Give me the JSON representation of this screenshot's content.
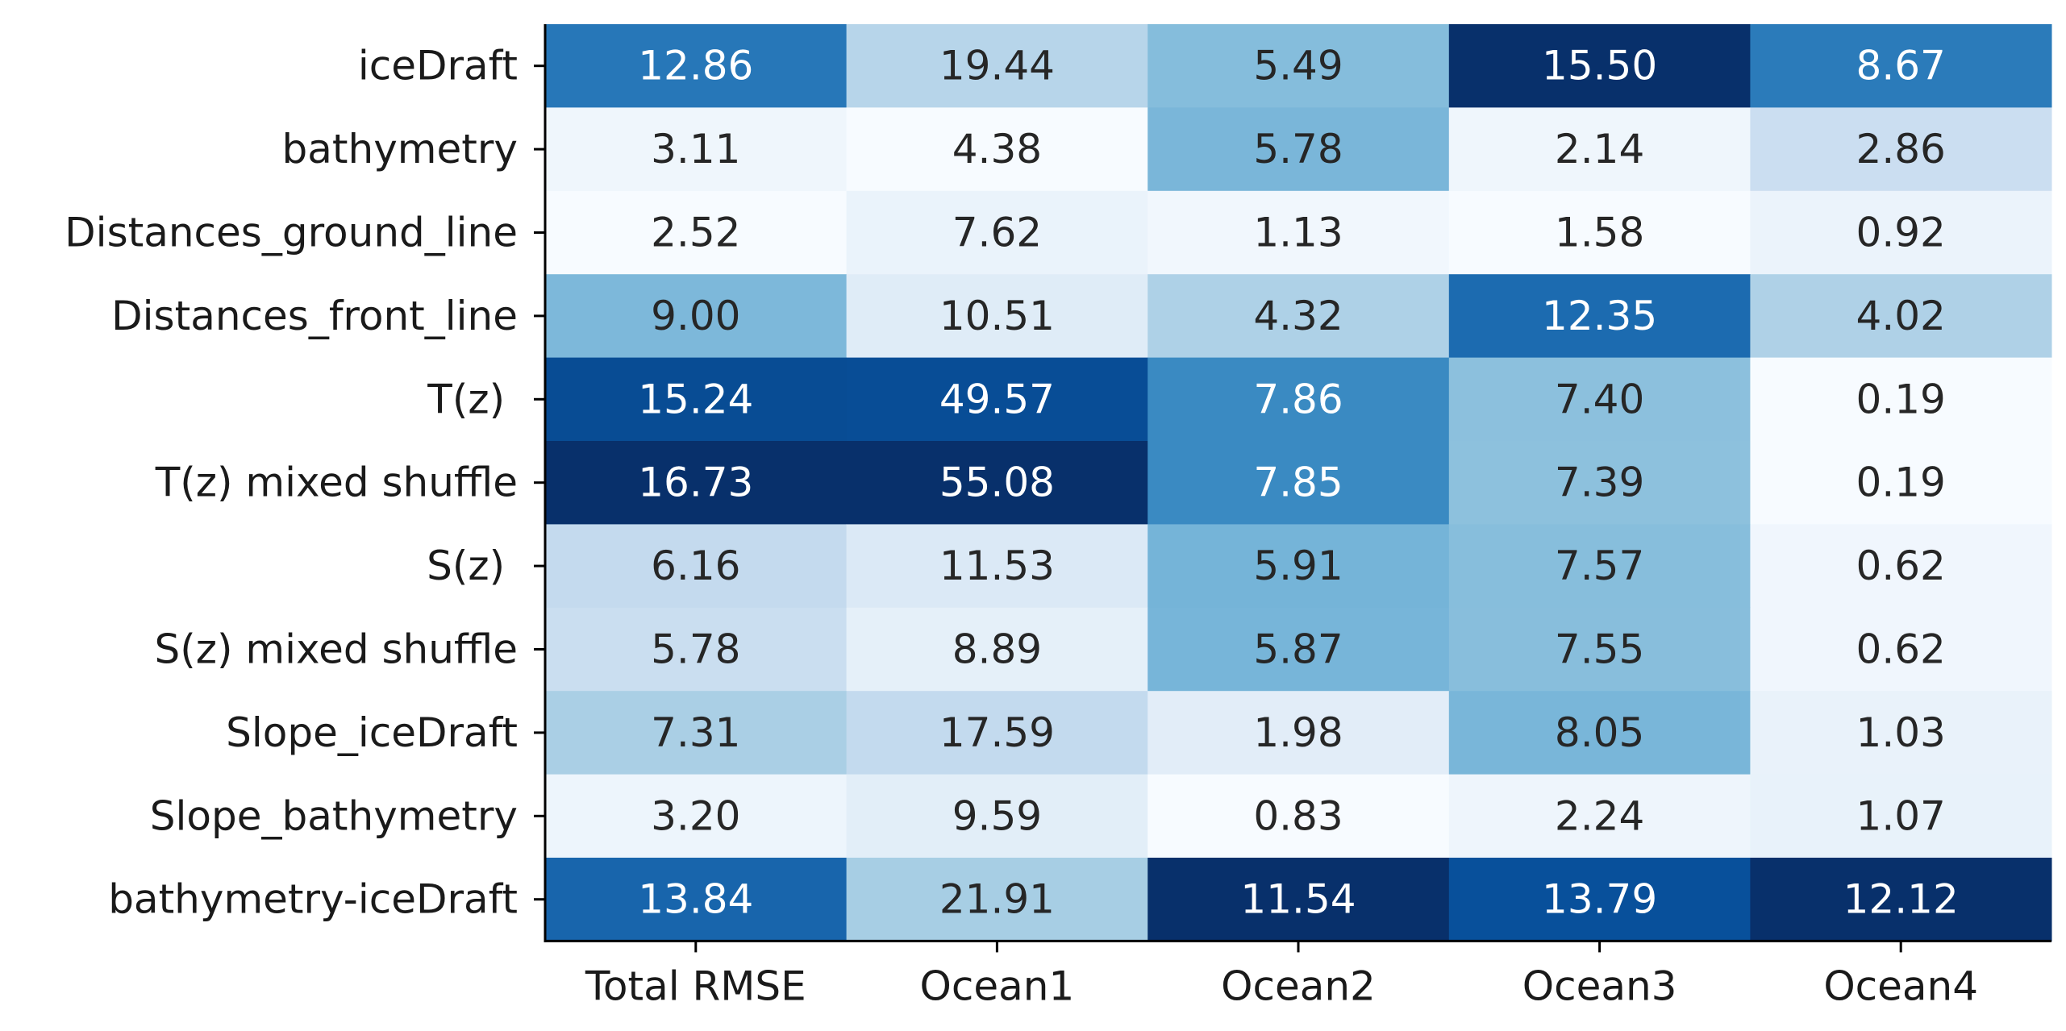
{
  "chart_data": {
    "type": "heatmap",
    "title": "",
    "xlabel": "",
    "ylabel": "",
    "columns": [
      "Total RMSE",
      "Ocean1",
      "Ocean2",
      "Ocean3",
      "Ocean4"
    ],
    "rows": [
      "iceDraft",
      "bathymetry",
      "Distances_ground_line",
      "Distances_front_line",
      "T(z) ",
      "T(z) mixed shuffle",
      "S(z) ",
      "S(z) mixed shuffle",
      "Slope_iceDraft",
      "Slope_bathymetry",
      "bathymetry-iceDraft"
    ],
    "values": [
      [
        12.86,
        19.44,
        5.49,
        15.5,
        8.67
      ],
      [
        3.11,
        4.38,
        5.78,
        2.14,
        2.86
      ],
      [
        2.52,
        7.62,
        1.13,
        1.58,
        0.92
      ],
      [
        9.0,
        10.51,
        4.32,
        12.35,
        4.02
      ],
      [
        15.24,
        49.57,
        7.86,
        7.4,
        0.19
      ],
      [
        16.73,
        55.08,
        7.85,
        7.39,
        0.19
      ],
      [
        6.16,
        11.53,
        5.91,
        7.57,
        0.62
      ],
      [
        5.78,
        8.89,
        5.87,
        7.55,
        0.62
      ],
      [
        7.31,
        17.59,
        1.98,
        8.05,
        1.03
      ],
      [
        3.2,
        9.59,
        0.83,
        2.24,
        1.07
      ],
      [
        13.84,
        21.91,
        11.54,
        13.79,
        12.12
      ]
    ],
    "labels": [
      [
        "12.86",
        "19.44",
        "5.49",
        "15.50",
        "8.67"
      ],
      [
        "3.11",
        "4.38",
        "5.78",
        "2.14",
        "2.86"
      ],
      [
        "2.52",
        "7.62",
        "1.13",
        "1.58",
        "0.92"
      ],
      [
        "9.00",
        "10.51",
        "4.32",
        "12.35",
        "4.02"
      ],
      [
        "15.24",
        "49.57",
        "7.86",
        "7.40",
        "0.19"
      ],
      [
        "16.73",
        "55.08",
        "7.85",
        "7.39",
        "0.19"
      ],
      [
        "6.16",
        "11.53",
        "5.91",
        "7.57",
        "0.62"
      ],
      [
        "5.78",
        "8.89",
        "5.87",
        "7.55",
        "0.62"
      ],
      [
        "7.31",
        "17.59",
        "1.98",
        "8.05",
        "1.03"
      ],
      [
        "3.20",
        "9.59",
        "0.83",
        "2.24",
        "1.07"
      ],
      [
        "13.84",
        "21.91",
        "11.54",
        "13.79",
        "12.12"
      ]
    ],
    "color_scale": "per-column, light to dark blue",
    "colormap": [
      "#f7fbff",
      "#deebf7",
      "#c6dbef",
      "#9ecae1",
      "#6baed6",
      "#4292c6",
      "#2171b5",
      "#08519c",
      "#08306b"
    ],
    "text_color_light": "#ffffff",
    "text_color_dark": "#262626",
    "grid": false,
    "legend": "none"
  }
}
